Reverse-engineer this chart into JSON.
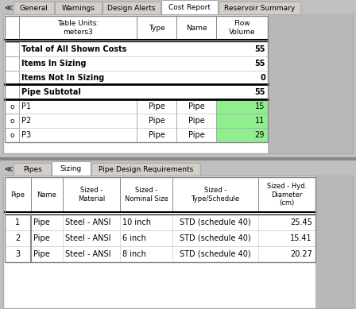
{
  "bg_color": "#c0c0c0",
  "tab_active_bg": "#ffffff",
  "tab_inactive_bg": "#d4d0c8",
  "green_cell": "#90EE90",
  "top_tabs": [
    "General",
    "Warnings",
    "Design Alerts",
    "Cost Report",
    "Reservoir Summary"
  ],
  "top_active_tab": "Cost Report",
  "bottom_tabs": [
    "Pipes",
    "Sizing",
    "Pipe Design Requirements"
  ],
  "bottom_active_tab": "Sizing",
  "cost_header": [
    "Table Units:\nmeters3",
    "Type",
    "Name",
    "Flow\nVolume"
  ],
  "cost_rows_bold": [
    [
      "Total of All Shown Costs",
      "55"
    ],
    [
      "Items In Sizing",
      "55"
    ],
    [
      "Items Not In Sizing",
      "0"
    ],
    [
      "Pipe Subtotal",
      "55"
    ]
  ],
  "cost_rows_detail": [
    [
      "o",
      "P1",
      "Pipe",
      "Pipe",
      "15"
    ],
    [
      "o",
      "P2",
      "Pipe",
      "Pipe",
      "11"
    ],
    [
      "o",
      "P3",
      "Pipe",
      "Pipe",
      "29"
    ]
  ],
  "sizing_headers": [
    "Pipe",
    "Name",
    "Sized -\nMaterial",
    "Sized -\nNominal Size",
    "Sized -\nType/Schedule",
    "Sized - Hyd.\nDiameter\n(cm)"
  ],
  "sizing_rows": [
    [
      "1",
      "Pipe",
      "Steel - ANSI",
      "10 inch",
      "STD (schedule 40)",
      "25.45"
    ],
    [
      "2",
      "Pipe",
      "Steel - ANSI",
      "6 inch",
      "STD (schedule 40)",
      "15.41"
    ],
    [
      "3",
      "Pipe",
      "Steel - ANSI",
      "8 inch",
      "STD (schedule 40)",
      "20.27"
    ]
  ]
}
